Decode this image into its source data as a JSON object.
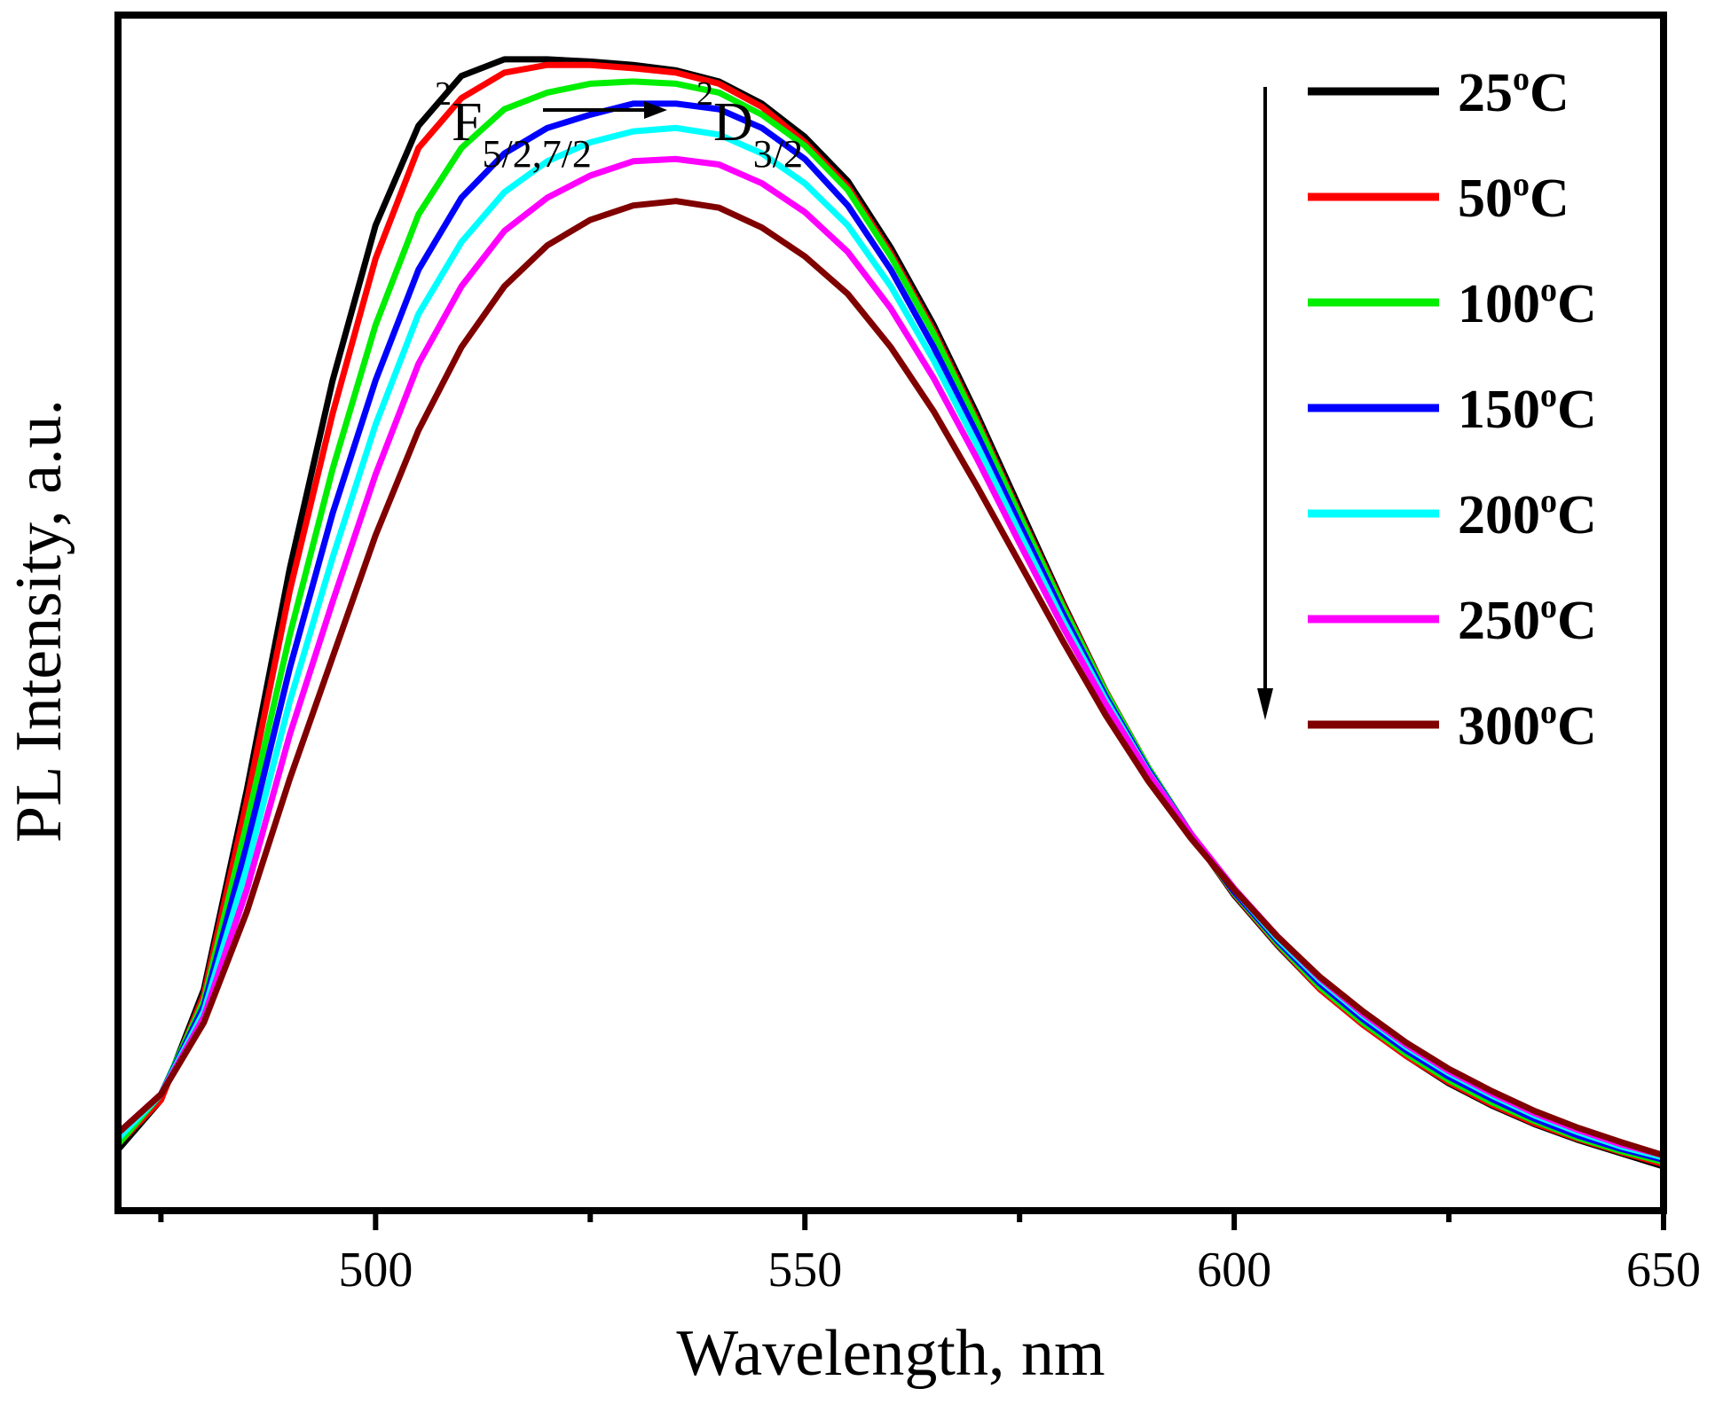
{
  "chart_data": {
    "type": "line",
    "xlabel": "Wavelength, nm",
    "ylabel": "PL Intensity, a.u.",
    "xlim": [
      470,
      650
    ],
    "ylim": [
      0,
      1.08
    ],
    "xticks": [
      500,
      550,
      600,
      650
    ],
    "xtick_labels": [
      "500",
      "550",
      "600",
      "650"
    ],
    "minor_xticks": [
      475,
      525,
      575,
      625
    ],
    "yticks_shown": false,
    "legend_position": "top-right",
    "annotation": {
      "from_sup": "2",
      "from_main": "F",
      "from_sub": "5/2,7/2",
      "to_sup": "2",
      "to_main": "D",
      "to_sub": "3/2"
    },
    "trend_arrow": "downward (increasing temperature)",
    "x": [
      470,
      475,
      480,
      485,
      490,
      495,
      500,
      505,
      510,
      515,
      520,
      525,
      530,
      535,
      540,
      545,
      550,
      555,
      560,
      565,
      570,
      575,
      580,
      585,
      590,
      595,
      600,
      605,
      610,
      615,
      620,
      625,
      630,
      635,
      640,
      645,
      650
    ],
    "series": [
      {
        "name": "25",
        "label_main": "25",
        "label_sup": "o",
        "label_unit": "C",
        "color": "#000000",
        "values": [
          0.055,
          0.1,
          0.2,
          0.38,
          0.58,
          0.75,
          0.89,
          0.98,
          1.025,
          1.04,
          1.04,
          1.038,
          1.035,
          1.03,
          1.02,
          1.0,
          0.97,
          0.93,
          0.87,
          0.8,
          0.72,
          0.635,
          0.55,
          0.47,
          0.4,
          0.34,
          0.285,
          0.24,
          0.2,
          0.168,
          0.14,
          0.115,
          0.095,
          0.078,
          0.064,
          0.052,
          0.04
        ]
      },
      {
        "name": "50",
        "label_main": "50",
        "label_sup": "o",
        "label_unit": "C",
        "color": "#ff0000",
        "values": [
          0.06,
          0.1,
          0.195,
          0.37,
          0.56,
          0.72,
          0.86,
          0.96,
          1.005,
          1.028,
          1.035,
          1.035,
          1.032,
          1.028,
          1.018,
          0.997,
          0.965,
          0.925,
          0.865,
          0.795,
          0.715,
          0.63,
          0.548,
          0.47,
          0.4,
          0.34,
          0.286,
          0.241,
          0.2,
          0.168,
          0.14,
          0.116,
          0.096,
          0.079,
          0.065,
          0.053,
          0.042
        ]
      },
      {
        "name": "100",
        "label_main": "100",
        "label_sup": "o",
        "label_unit": "C",
        "color": "#00ee00",
        "values": [
          0.06,
          0.105,
          0.19,
          0.35,
          0.52,
          0.67,
          0.8,
          0.9,
          0.96,
          0.995,
          1.01,
          1.018,
          1.02,
          1.018,
          1.01,
          0.99,
          0.962,
          0.922,
          0.862,
          0.792,
          0.712,
          0.628,
          0.546,
          0.469,
          0.4,
          0.34,
          0.287,
          0.242,
          0.202,
          0.17,
          0.142,
          0.118,
          0.098,
          0.081,
          0.066,
          0.054,
          0.044
        ]
      },
      {
        "name": "150",
        "label_main": "150",
        "label_sup": "o",
        "label_unit": "C",
        "color": "#0000ff",
        "values": [
          0.065,
          0.105,
          0.185,
          0.33,
          0.49,
          0.63,
          0.75,
          0.85,
          0.915,
          0.955,
          0.978,
          0.99,
          1.0,
          1.0,
          0.995,
          0.978,
          0.95,
          0.908,
          0.85,
          0.78,
          0.702,
          0.62,
          0.54,
          0.465,
          0.398,
          0.34,
          0.288,
          0.244,
          0.205,
          0.173,
          0.145,
          0.121,
          0.101,
          0.083,
          0.068,
          0.056,
          0.046
        ]
      },
      {
        "name": "200",
        "label_main": "200",
        "label_sup": "o",
        "label_unit": "C",
        "color": "#00ffff",
        "values": [
          0.065,
          0.105,
          0.18,
          0.31,
          0.46,
          0.59,
          0.71,
          0.81,
          0.875,
          0.92,
          0.948,
          0.965,
          0.975,
          0.978,
          0.972,
          0.955,
          0.928,
          0.89,
          0.835,
          0.768,
          0.692,
          0.612,
          0.534,
          0.462,
          0.396,
          0.34,
          0.29,
          0.246,
          0.208,
          0.176,
          0.148,
          0.124,
          0.104,
          0.086,
          0.071,
          0.058,
          0.048
        ]
      },
      {
        "name": "250",
        "label_main": "250",
        "label_sup": "o",
        "label_unit": "C",
        "color": "#ff00ff",
        "values": [
          0.07,
          0.105,
          0.175,
          0.29,
          0.43,
          0.55,
          0.665,
          0.765,
          0.835,
          0.885,
          0.915,
          0.935,
          0.948,
          0.95,
          0.945,
          0.928,
          0.902,
          0.866,
          0.815,
          0.752,
          0.68,
          0.603,
          0.528,
          0.458,
          0.395,
          0.34,
          0.291,
          0.248,
          0.21,
          0.178,
          0.15,
          0.126,
          0.106,
          0.088,
          0.073,
          0.06,
          0.05
        ]
      },
      {
        "name": "300",
        "label_main": "300",
        "label_sup": "o",
        "label_unit": "C",
        "color": "#800000",
        "values": [
          0.07,
          0.105,
          0.17,
          0.27,
          0.39,
          0.5,
          0.61,
          0.705,
          0.78,
          0.835,
          0.872,
          0.895,
          0.908,
          0.912,
          0.906,
          0.888,
          0.862,
          0.828,
          0.78,
          0.722,
          0.655,
          0.585,
          0.515,
          0.448,
          0.388,
          0.336,
          0.29,
          0.248,
          0.211,
          0.18,
          0.152,
          0.128,
          0.108,
          0.09,
          0.075,
          0.062,
          0.05
        ]
      }
    ]
  }
}
